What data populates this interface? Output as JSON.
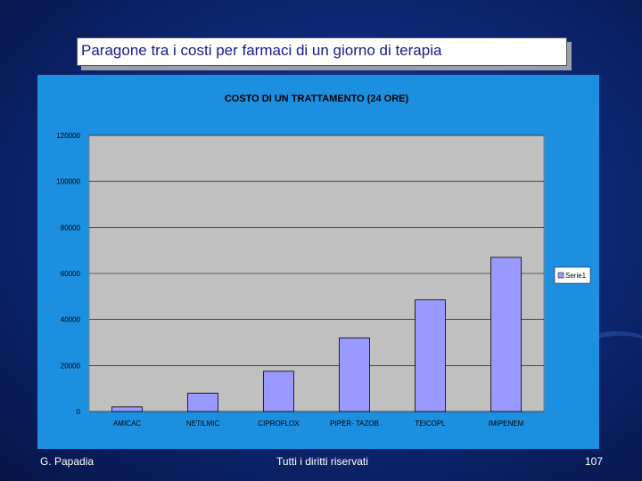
{
  "slide": {
    "title": "Paragone tra i costi per farmaci di un giorno di terapia",
    "footer_left": "G. Papadia",
    "footer_center": "Tutti i diritti riservati",
    "page_number": "107"
  },
  "colors": {
    "panel": "#1d8fe0",
    "plot_area": "#c0c0c0",
    "bar": "#9999ff"
  },
  "chart_data": {
    "type": "bar",
    "title": "COSTO DI UN TRATTAMENTO (24 ORE)",
    "categories": [
      "AMICAC",
      "NETILMIC",
      "CIPROFLOX",
      "PIPER- TAZOB",
      "TEICOPL",
      "IMIPENEM"
    ],
    "series": [
      {
        "name": "Serie1",
        "values": [
          2000,
          8000,
          17500,
          32000,
          48500,
          67000
        ]
      }
    ],
    "ylim": [
      0,
      120000
    ],
    "yticks": [
      "0",
      "20000",
      "40000",
      "60000",
      "80000",
      "100000",
      "120000"
    ],
    "ytick_values": [
      0,
      20000,
      40000,
      60000,
      80000,
      100000,
      120000
    ],
    "grid": true,
    "legend": "right",
    "xlabel": "",
    "ylabel": ""
  }
}
